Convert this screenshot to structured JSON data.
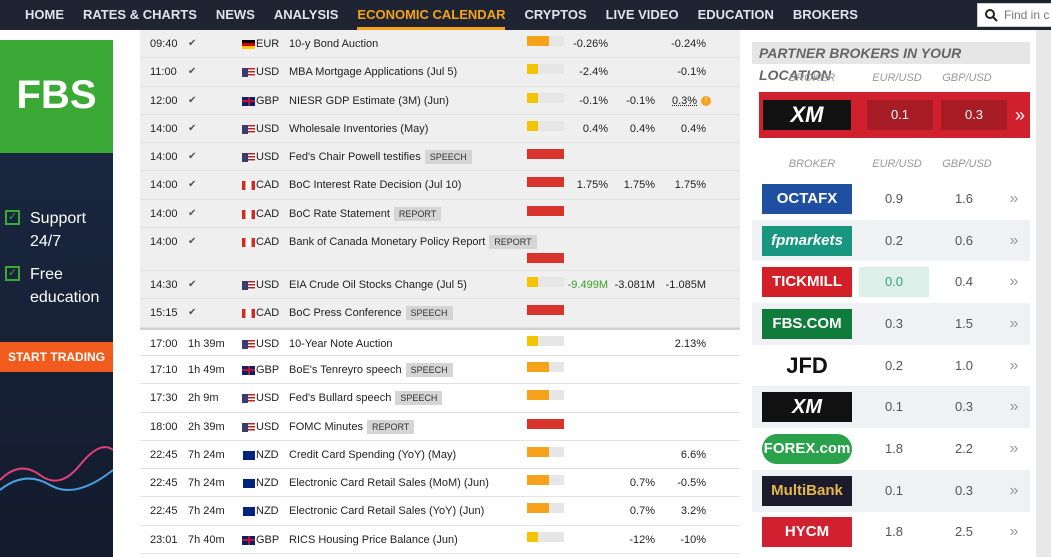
{
  "nav": {
    "items": [
      "HOME",
      "RATES & CHARTS",
      "NEWS",
      "ANALYSIS",
      "ECONOMIC CALENDAR",
      "CRYPTOS",
      "LIVE VIDEO",
      "EDUCATION",
      "BROKERS"
    ],
    "active": 4,
    "search_placeholder": "Find in c"
  },
  "ad": {
    "logo": "FBS",
    "features": [
      "Support 24/7",
      "Free education"
    ],
    "button": "START TRADING"
  },
  "calendar": {
    "rows": [
      {
        "time": "09:40",
        "currency": "EUR",
        "event": "10-y Bond Auction",
        "impact": "medium",
        "actual": "-0.26%",
        "previous": "-0.24%"
      },
      {
        "time": "11:00",
        "currency": "USD",
        "event": "MBA Mortgage Applications (Jul 5)",
        "impact": "low",
        "actual": "-2.4%",
        "previous": "-0.1%"
      },
      {
        "time": "12:00",
        "currency": "GBP",
        "event": "NIESR GDP Estimate (3M) (Jun)",
        "impact": "low",
        "actual": "-0.1%",
        "forecast": "-0.1%",
        "previous": "0.3%"
      },
      {
        "time": "14:00",
        "currency": "USD",
        "event": "Wholesale Inventories (May)",
        "impact": "low",
        "actual": "0.4%",
        "forecast": "0.4%",
        "previous": "0.4%"
      },
      {
        "time": "14:00",
        "currency": "USD",
        "event": "Fed's Chair Powell testifies",
        "tag": "SPEECH",
        "impact": "high"
      },
      {
        "time": "14:00",
        "currency": "CAD",
        "event": "BoC Interest Rate Decision (Jul 10)",
        "impact": "high",
        "actual": "1.75%",
        "forecast": "1.75%",
        "previous": "1.75%"
      },
      {
        "time": "14:00",
        "currency": "CAD",
        "event": "BoC Rate Statement",
        "tag": "REPORT",
        "impact": "high"
      },
      {
        "time": "14:00",
        "currency": "CAD",
        "event": "Bank of Canada Monetary Policy Report",
        "tag": "REPORT",
        "impact": "high"
      },
      {
        "time": "14:30",
        "currency": "USD",
        "event": "EIA Crude Oil Stocks Change (Jul 5)",
        "impact": "low",
        "actual": "-9.499M",
        "forecast": "-3.081M",
        "previous": "-1.085M"
      },
      {
        "time": "15:15",
        "currency": "CAD",
        "event": "BoC Press Conference",
        "tag": "SPEECH",
        "impact": "high"
      },
      {
        "time": "17:00",
        "countdown": "1h 39m",
        "currency": "USD",
        "event": "10-Year Note Auction",
        "impact": "low",
        "previous": "2.13%"
      },
      {
        "time": "17:10",
        "countdown": "1h 49m",
        "currency": "GBP",
        "event": "BoE's Tenreyro speech",
        "tag": "SPEECH",
        "impact": "medium"
      },
      {
        "time": "17:30",
        "countdown": "2h 9m",
        "currency": "USD",
        "event": "Fed's Bullard speech",
        "tag": "SPEECH",
        "impact": "medium"
      },
      {
        "time": "18:00",
        "countdown": "2h 39m",
        "currency": "USD",
        "event": "FOMC Minutes",
        "tag": "REPORT",
        "impact": "high"
      },
      {
        "time": "22:45",
        "countdown": "7h 24m",
        "currency": "NZD",
        "event": "Credit Card Spending (YoY) (May)",
        "impact": "medium",
        "previous": "6.6%"
      },
      {
        "time": "22:45",
        "countdown": "7h 24m",
        "currency": "NZD",
        "event": "Electronic Card Retail Sales (MoM) (Jun)",
        "impact": "medium",
        "forecast": "0.7%",
        "previous": "-0.5%"
      },
      {
        "time": "22:45",
        "countdown": "7h 24m",
        "currency": "NZD",
        "event": "Electronic Card Retail Sales (YoY) (Jun)",
        "impact": "medium",
        "forecast": "0.7%",
        "previous": "3.2%"
      },
      {
        "time": "23:01",
        "countdown": "7h 40m",
        "currency": "GBP",
        "event": "RICS Housing Price Balance (Jun)",
        "impact": "low",
        "forecast": "-12%",
        "previous": "-10%"
      }
    ]
  },
  "brokers": {
    "title": "PARTNER BROKERS IN YOUR LOCATION",
    "headers": [
      "BROKER",
      "EUR/USD",
      "GBP/USD"
    ],
    "featured": {
      "name": "XM",
      "eur_usd": "0.1",
      "gbp_usd": "0.3"
    },
    "list_headers": [
      "BROKER",
      "EUR/USD",
      "GBP/USD"
    ],
    "list": [
      {
        "name": "OCTAFX",
        "eur_usd": "0.9",
        "gbp_usd": "1.6"
      },
      {
        "name": "fpmarkets",
        "eur_usd": "0.2",
        "gbp_usd": "0.6"
      },
      {
        "name": "TICKMILL",
        "eur_usd": "0.0",
        "gbp_usd": "0.4"
      },
      {
        "name": "FBS.COM",
        "eur_usd": "0.3",
        "gbp_usd": "1.5"
      },
      {
        "name": "JFD",
        "eur_usd": "0.2",
        "gbp_usd": "1.0"
      },
      {
        "name": "XM",
        "eur_usd": "0.1",
        "gbp_usd": "0.3"
      },
      {
        "name": "FOREX.com",
        "eur_usd": "1.8",
        "gbp_usd": "2.2"
      },
      {
        "name": "MultiBank",
        "eur_usd": "0.1",
        "gbp_usd": "0.3"
      },
      {
        "name": "HYCM",
        "eur_usd": "1.8",
        "gbp_usd": "2.5"
      }
    ]
  }
}
